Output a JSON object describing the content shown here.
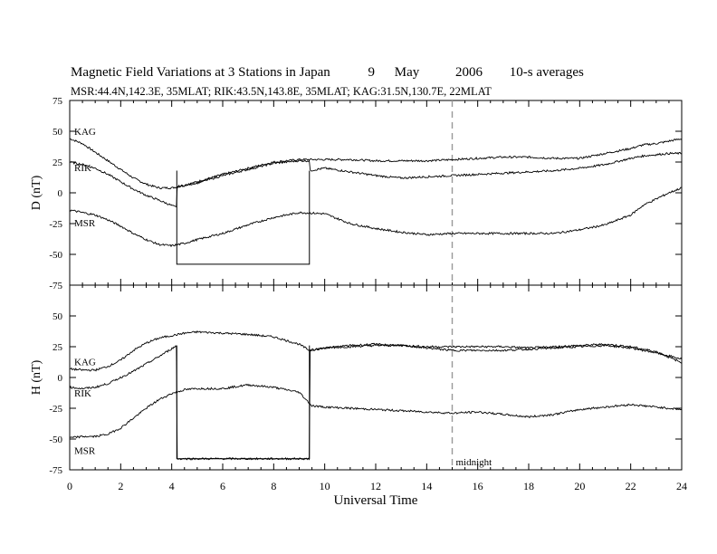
{
  "header": {
    "title": "Magnetic Field Variations at 3 Stations in Japan",
    "day": "9",
    "month": "May",
    "year": "2006",
    "averaging": "10-s averages",
    "stations": "MSR:44.4N,142.3E, 35MLAT;  RIK:43.5N,143.8E, 35MLAT;  KAG:31.5N,130.7E, 22MLAT"
  },
  "chart_data": [
    {
      "type": "line",
      "panel": "top",
      "ylabel": "D (nT)",
      "xlim": [
        0,
        24
      ],
      "ylim": [
        -75,
        75
      ],
      "yticks": [
        "75",
        "50",
        "25",
        "0",
        "-25",
        "-50",
        "-75"
      ],
      "series": [
        {
          "name": "KAG",
          "x": [
            0,
            0.5,
            1,
            1.5,
            2,
            2.5,
            3,
            3.5,
            4,
            4.5,
            5,
            6,
            7,
            8,
            9,
            10,
            11,
            12,
            13,
            14,
            15,
            16,
            17,
            18,
            19,
            20,
            21,
            22,
            22.5,
            23,
            23.5,
            24
          ],
          "values": [
            44,
            40,
            33,
            26,
            19,
            12,
            7,
            4,
            4,
            6,
            9,
            15,
            20,
            25,
            27,
            27,
            27,
            26,
            26,
            26,
            27,
            28,
            29,
            29,
            28,
            28,
            32,
            36,
            39,
            40,
            42,
            44
          ]
        },
        {
          "name": "RIK",
          "x": [
            0,
            0.5,
            1,
            1.5,
            2,
            2.5,
            3,
            3.5,
            4.2,
            4.21,
            5,
            6,
            7,
            8,
            9,
            9.4,
            9.41,
            10,
            11,
            12,
            13,
            14,
            15,
            16,
            17,
            18,
            19,
            20,
            21,
            22,
            22.5,
            23,
            23.5,
            24
          ],
          "values": [
            25,
            23,
            20,
            15,
            9,
            3,
            -2,
            -6,
            -12,
            5,
            8,
            14,
            19,
            24,
            26,
            26,
            18,
            20,
            17,
            14,
            12,
            13,
            14,
            15,
            16,
            17,
            18,
            20,
            23,
            28,
            30,
            31,
            32,
            32
          ]
        },
        {
          "name": "MSR",
          "x": [
            0,
            0.5,
            1,
            1.5,
            2,
            2.5,
            3,
            3.5,
            4,
            4.5,
            5,
            6,
            7,
            8,
            9,
            10,
            11,
            12,
            13,
            14,
            15,
            16,
            17,
            18,
            19,
            20,
            21,
            22,
            22.5,
            23,
            23.5,
            24
          ],
          "values": [
            -14,
            -16,
            -18,
            -22,
            -27,
            -33,
            -38,
            -42,
            -43,
            -41,
            -38,
            -33,
            -26,
            -20,
            -16,
            -17,
            -25,
            -29,
            -32,
            -34,
            -33,
            -33,
            -33,
            -33,
            -33,
            -30,
            -26,
            -18,
            -10,
            -5,
            0,
            4
          ]
        }
      ],
      "overlay": {
        "x0": 4.2,
        "x1": 9.4,
        "top": 18,
        "bottom": -58
      }
    },
    {
      "type": "line",
      "panel": "bottom",
      "ylabel": "H (nT)",
      "xlabel": "Universal Time",
      "xlim": [
        0,
        24
      ],
      "ylim": [
        -75,
        75
      ],
      "xticks": [
        "0",
        "2",
        "4",
        "6",
        "8",
        "10",
        "12",
        "14",
        "16",
        "18",
        "20",
        "22",
        "24"
      ],
      "yticks": [
        "75",
        "50",
        "25",
        "0",
        "-25",
        "-50",
        "-75"
      ],
      "series": [
        {
          "name": "KAG",
          "x": [
            0,
            0.5,
            1,
            1.5,
            2,
            2.5,
            3,
            3.5,
            4,
            4.5,
            5,
            6,
            7,
            8,
            9,
            9.4,
            10,
            11,
            12,
            13,
            14,
            15,
            16,
            17,
            18,
            19,
            20,
            21,
            22,
            23,
            24
          ],
          "values": [
            7,
            6,
            6,
            9,
            14,
            22,
            28,
            32,
            34,
            36,
            37,
            36,
            35,
            33,
            27,
            22,
            24,
            25,
            26,
            26,
            25,
            25,
            25,
            25,
            24,
            25,
            26,
            27,
            25,
            21,
            12
          ]
        },
        {
          "name": "RIK",
          "x": [
            0,
            0.5,
            1,
            1.5,
            2,
            2.5,
            3,
            3.5,
            4.2,
            4.21,
            5,
            6,
            7,
            8,
            9,
            9.4,
            9.41,
            10,
            11,
            12,
            13,
            14,
            15,
            16,
            17,
            18,
            19,
            20,
            21,
            22,
            23,
            24
          ],
          "values": [
            -8,
            -9,
            -8,
            -5,
            0,
            5,
            11,
            17,
            26,
            -66,
            -66,
            -66,
            -66,
            -66,
            -66,
            -66,
            22,
            24,
            26,
            27,
            26,
            24,
            22,
            22,
            22,
            23,
            24,
            25,
            26,
            24,
            20,
            15
          ]
        },
        {
          "name": "MSR",
          "x": [
            0,
            0.5,
            1,
            1.5,
            2,
            2.5,
            3,
            3.5,
            4,
            4.5,
            5,
            6,
            7,
            8,
            9,
            9.5,
            10,
            11,
            12,
            13,
            14,
            15,
            16,
            17,
            18,
            19,
            20,
            21,
            22,
            23,
            24
          ],
          "values": [
            -49,
            -48,
            -48,
            -46,
            -41,
            -33,
            -25,
            -18,
            -13,
            -10,
            -9,
            -9,
            -6,
            -8,
            -12,
            -23,
            -24,
            -25,
            -26,
            -27,
            -28,
            -29,
            -28,
            -30,
            -32,
            -30,
            -26,
            -24,
            -22,
            -24,
            -26
          ]
        }
      ],
      "overlay": {
        "x0": 4.2,
        "x1": 9.4,
        "top": 26,
        "bottom": -66
      }
    }
  ],
  "annotations": {
    "midnight_label": "midnight",
    "midnight_x": 15
  }
}
